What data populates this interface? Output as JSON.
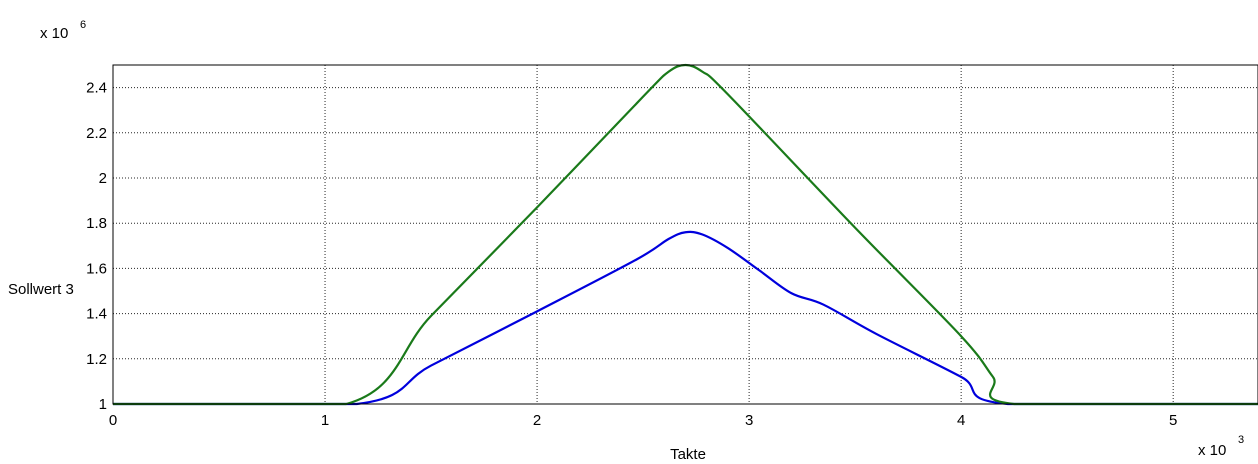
{
  "chart_data": {
    "type": "line",
    "title": "",
    "xlabel": "Takte",
    "ylabel": "Sollwert 3",
    "x_multiplier": {
      "base": "x 10",
      "exponent": "3"
    },
    "y_multiplier": {
      "base": "x 10",
      "exponent": "6"
    },
    "xlim": [
      0,
      5.4
    ],
    "ylim": [
      1,
      2.5
    ],
    "x_ticks": [
      0,
      1,
      2,
      3,
      4,
      5
    ],
    "x_tick_labels": [
      "0",
      "1",
      "2",
      "3",
      "4",
      "5"
    ],
    "y_ticks": [
      1,
      1.2,
      1.4,
      1.6,
      1.8,
      2,
      2.2,
      2.4
    ],
    "y_tick_labels": [
      "1",
      "1.2",
      "1.4",
      "1.6",
      "1.8",
      "2",
      "2.2",
      "2.4"
    ],
    "grid": true,
    "series": [
      {
        "color": "#0000dd",
        "x": [
          0,
          1.15,
          1.5,
          2.0,
          2.47,
          2.62,
          2.7,
          2.78,
          2.9,
          3.05,
          3.2,
          3.35,
          3.6,
          4.0,
          4.22,
          5.4
        ],
        "y": [
          1.0,
          1.0,
          1.17,
          1.41,
          1.64,
          1.73,
          1.76,
          1.75,
          1.69,
          1.59,
          1.49,
          1.44,
          1.31,
          1.12,
          1.0,
          1.0
        ]
      },
      {
        "color": "#1a7a1a",
        "x": [
          0,
          1.1,
          1.5,
          2.0,
          2.5,
          2.62,
          2.7,
          2.78,
          2.9,
          3.5,
          4.0,
          4.15,
          4.25,
          5.4
        ],
        "y": [
          1.0,
          1.0,
          1.39,
          1.87,
          2.36,
          2.47,
          2.5,
          2.47,
          2.37,
          1.78,
          1.3,
          1.12,
          1.0,
          1.0
        ]
      }
    ]
  }
}
